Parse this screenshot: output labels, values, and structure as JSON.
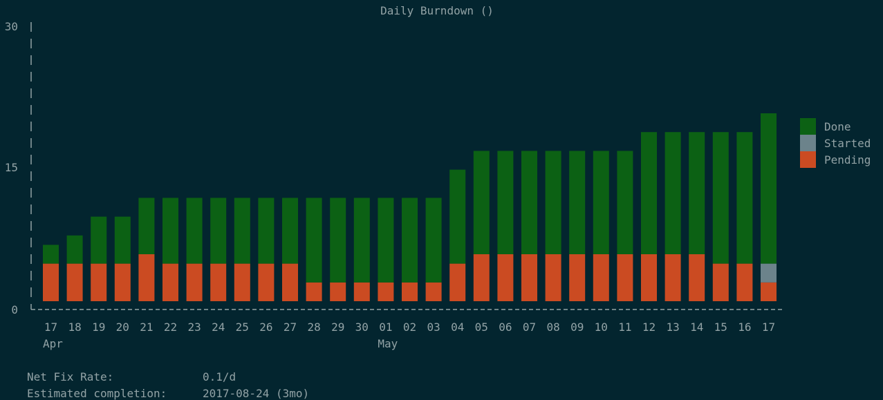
{
  "chart_data": {
    "type": "bar",
    "stacked": true,
    "title": "Daily Burndown ()",
    "xlabel": "",
    "ylabel": "",
    "ylim": [
      0,
      30
    ],
    "yticks": [
      "0",
      "15",
      "30"
    ],
    "categories": [
      "17",
      "18",
      "19",
      "20",
      "21",
      "22",
      "23",
      "24",
      "25",
      "26",
      "27",
      "28",
      "29",
      "30",
      "01",
      "02",
      "03",
      "04",
      "05",
      "06",
      "07",
      "08",
      "09",
      "10",
      "11",
      "12",
      "13",
      "14",
      "15",
      "16",
      "17"
    ],
    "month_labels": [
      {
        "index": 0,
        "label": "Apr"
      },
      {
        "index": 14,
        "label": "May"
      }
    ],
    "legend_position": "right",
    "series": [
      {
        "name": "Pending",
        "color": "#cb4b22",
        "values": [
          4,
          4,
          4,
          4,
          5,
          4,
          4,
          4,
          4,
          4,
          4,
          2,
          2,
          2,
          2,
          2,
          2,
          4,
          5,
          5,
          5,
          5,
          5,
          5,
          5,
          5,
          5,
          5,
          4,
          4,
          2
        ]
      },
      {
        "name": "Started",
        "color": "#6c838b",
        "values": [
          0,
          0,
          0,
          0,
          0,
          0,
          0,
          0,
          0,
          0,
          0,
          0,
          0,
          0,
          0,
          0,
          0,
          0,
          0,
          0,
          0,
          0,
          0,
          0,
          0,
          0,
          0,
          0,
          0,
          0,
          2
        ]
      },
      {
        "name": "Done",
        "color": "#0c6114",
        "values": [
          2,
          3,
          5,
          5,
          6,
          7,
          7,
          7,
          7,
          7,
          7,
          9,
          9,
          9,
          9,
          9,
          9,
          10,
          11,
          11,
          11,
          11,
          11,
          11,
          11,
          13,
          13,
          13,
          14,
          14,
          16
        ]
      }
    ],
    "legend_order": [
      "Done",
      "Started",
      "Pending"
    ]
  },
  "footer": {
    "net_fix_rate_label": "Net Fix Rate:",
    "net_fix_rate_value": "0.1/d",
    "estimated_completion_label": "Estimated completion:",
    "estimated_completion_value": "2017-08-24 (3mo)"
  }
}
